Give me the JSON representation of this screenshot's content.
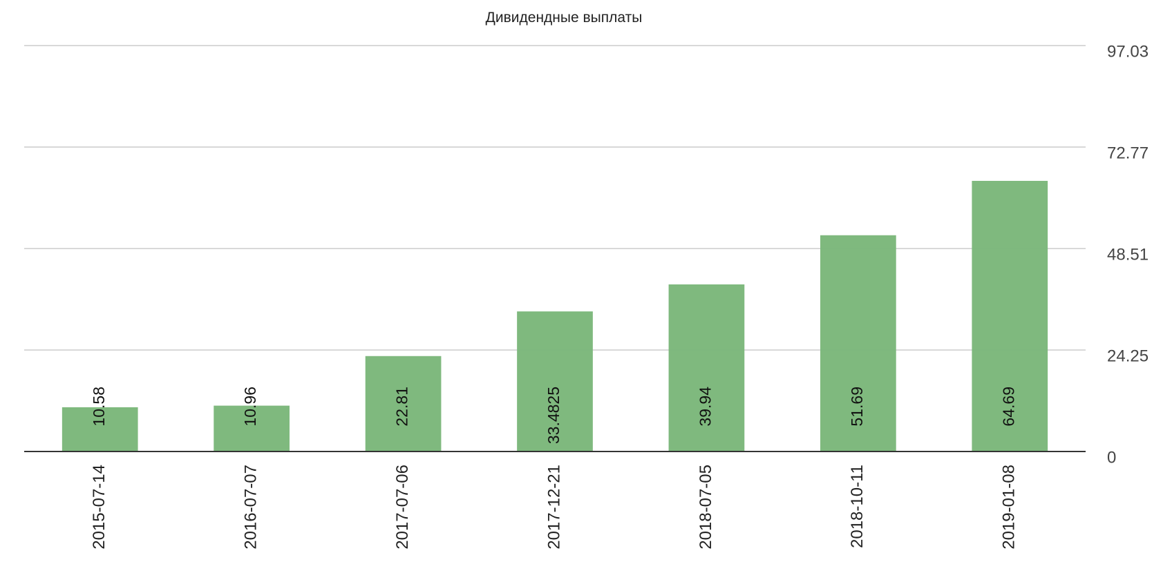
{
  "chart_data": {
    "type": "bar",
    "title": "Дивидендные выплаты",
    "categories": [
      "2015-07-14",
      "2016-07-07",
      "2017-07-06",
      "2017-12-21",
      "2018-07-05",
      "2018-10-11",
      "2019-01-08"
    ],
    "values": [
      10.58,
      10.96,
      22.81,
      33.4825,
      39.94,
      51.69,
      64.69
    ],
    "color": "#7cb87b",
    "ylim": [
      0,
      97.03
    ],
    "yticks": [
      0,
      24.25,
      48.51,
      72.77,
      97.03
    ],
    "grid": true
  }
}
